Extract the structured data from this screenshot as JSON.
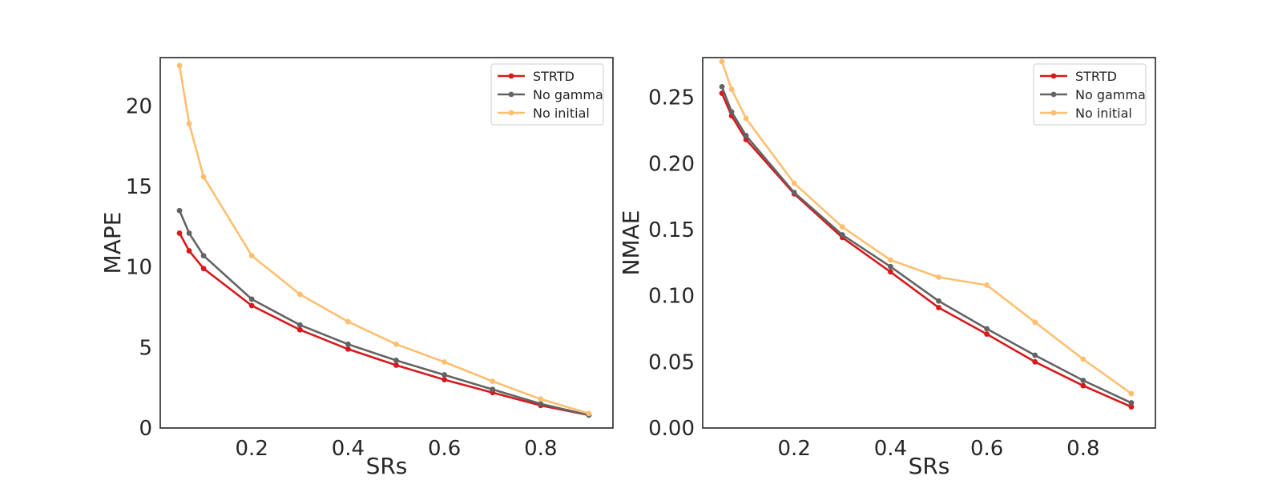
{
  "chart_data": [
    {
      "type": "line",
      "title": "",
      "xlabel": "SRs",
      "ylabel": "MAPE",
      "xlim": [
        0.01,
        0.95
      ],
      "ylim": [
        0,
        23
      ],
      "xticks": [
        0.2,
        0.4,
        0.6,
        0.8
      ],
      "xtick_labels": [
        "0.2",
        "0.4",
        "0.6",
        "0.8"
      ],
      "yticks": [
        0,
        5,
        10,
        15,
        20
      ],
      "ytick_labels": [
        "0",
        "5",
        "10",
        "15",
        "20"
      ],
      "grid": false,
      "legend_position": "top-right",
      "x": [
        0.05,
        0.07,
        0.1,
        0.2,
        0.3,
        0.4,
        0.5,
        0.6,
        0.7,
        0.8,
        0.9
      ],
      "series": [
        {
          "name": "STRTD",
          "color": "#d7191c",
          "values": [
            12.1,
            11.0,
            9.9,
            7.6,
            6.1,
            4.9,
            3.9,
            3.0,
            2.2,
            1.4,
            0.8
          ]
        },
        {
          "name": "No gamma",
          "color": "#636363",
          "values": [
            13.5,
            12.1,
            10.7,
            8.0,
            6.4,
            5.2,
            4.2,
            3.3,
            2.4,
            1.5,
            0.8
          ]
        },
        {
          "name": "No initial",
          "color": "#fdbf6f",
          "values": [
            22.5,
            18.9,
            15.6,
            10.7,
            8.3,
            6.6,
            5.2,
            4.1,
            2.9,
            1.8,
            0.9
          ]
        }
      ]
    },
    {
      "type": "line",
      "title": "",
      "xlabel": "SRs",
      "ylabel": "NMAE",
      "xlim": [
        0.01,
        0.95
      ],
      "ylim": [
        0,
        0.28
      ],
      "xticks": [
        0.2,
        0.4,
        0.6,
        0.8
      ],
      "xtick_labels": [
        "0.2",
        "0.4",
        "0.6",
        "0.8"
      ],
      "yticks": [
        0,
        0.05,
        0.1,
        0.15,
        0.2,
        0.25
      ],
      "ytick_labels": [
        "0.00",
        "0.05",
        "0.10",
        "0.15",
        "0.20",
        "0.25"
      ],
      "grid": false,
      "legend_position": "top-right",
      "x": [
        0.05,
        0.07,
        0.1,
        0.2,
        0.3,
        0.4,
        0.5,
        0.6,
        0.7,
        0.8,
        0.9
      ],
      "series": [
        {
          "name": "STRTD",
          "color": "#d7191c",
          "values": [
            0.253,
            0.236,
            0.218,
            0.177,
            0.144,
            0.118,
            0.091,
            0.071,
            0.05,
            0.032,
            0.016
          ]
        },
        {
          "name": "No gamma",
          "color": "#636363",
          "values": [
            0.258,
            0.239,
            0.221,
            0.178,
            0.146,
            0.122,
            0.096,
            0.075,
            0.055,
            0.036,
            0.019
          ]
        },
        {
          "name": "No initial",
          "color": "#fdbf6f",
          "values": [
            0.277,
            0.256,
            0.234,
            0.185,
            0.152,
            0.127,
            0.114,
            0.108,
            0.08,
            0.052,
            0.026
          ]
        }
      ]
    }
  ]
}
